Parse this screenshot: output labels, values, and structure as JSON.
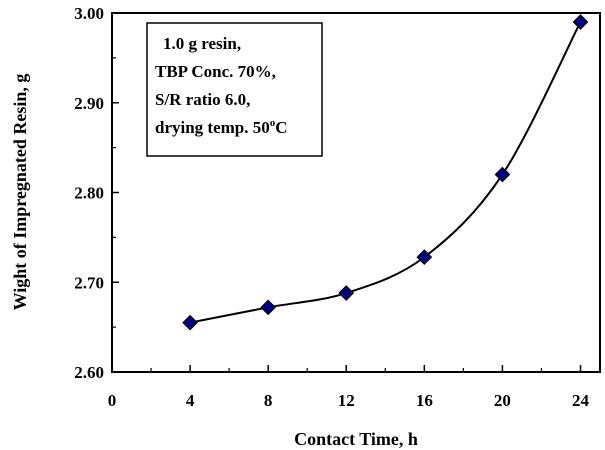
{
  "chart_data": {
    "type": "scatter",
    "xlabel": "Contact Time, h",
    "ylabel": "Wight of Impregnated Resin, g",
    "xlim": [
      0,
      25
    ],
    "ylim": [
      2.6,
      3.0
    ],
    "x_ticks": [
      0,
      4,
      8,
      12,
      16,
      20,
      24
    ],
    "x_tick_labels": [
      "0",
      "4",
      "8",
      "12",
      "16",
      "20",
      "24"
    ],
    "y_ticks": [
      2.6,
      2.7,
      2.8,
      2.9,
      3.0
    ],
    "y_tick_labels": [
      "2.60",
      "2.70",
      "2.80",
      "2.90",
      "3.00"
    ],
    "series": [
      {
        "marker": "diamond",
        "color": "#000080",
        "x": [
          4,
          8,
          12,
          16,
          20,
          24
        ],
        "y": [
          2.655,
          2.672,
          2.688,
          2.728,
          2.82,
          2.99
        ]
      }
    ],
    "trendline": "smooth curve through points",
    "annotation": {
      "lines": [
        "1.0 g resin,",
        "TBP Conc. 70%,",
        "S/R ratio 6.0,",
        "drying temp. 50°C"
      ]
    },
    "grid": false
  }
}
